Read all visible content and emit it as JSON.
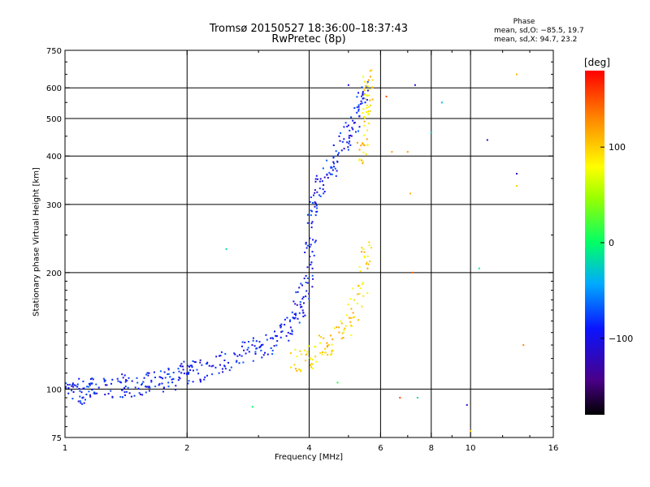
{
  "header": {
    "title_line1": "Tromsø 20150527 18:36:00–18:37:43",
    "title_line2": "RwPretec (8p)"
  },
  "phase_info": {
    "title": "Phase",
    "o_mode": "mean, sd,O: −85.5, 19.7",
    "x_mode": "mean, sd,X: 94.7, 23.2"
  },
  "colorbar": {
    "unit": "[deg]",
    "tick_labels": [
      "100",
      "0",
      "−100"
    ],
    "tick_values": [
      100,
      0,
      -100
    ],
    "range": [
      -180,
      180
    ]
  },
  "colors": {
    "grid": "#000000",
    "o_mode_trace": "#1c46f0",
    "x_mode_trace": "#e6e619"
  },
  "chart_data": {
    "type": "scatter",
    "title": "Tromsø 20150527 18:36:00–18:37:43",
    "subtitle": "RwPretec (8p)",
    "xlabel": "Frequency [MHz]",
    "ylabel": "Stationary phase Virtual Height [km]",
    "x_scale": "log",
    "y_scale": "log",
    "xlim": [
      1,
      16
    ],
    "ylim": [
      75,
      750
    ],
    "x_ticks": [
      1,
      2,
      4,
      6,
      8,
      10,
      16
    ],
    "x_tick_labels": [
      "1",
      "2",
      "4",
      "6",
      "8",
      "10",
      "16"
    ],
    "y_ticks": [
      75,
      100,
      200,
      300,
      400,
      500,
      600,
      750
    ],
    "y_tick_labels": [
      "75",
      "100",
      "200",
      "300",
      "400",
      "500",
      "600",
      "750"
    ],
    "x_grid": [
      2,
      4,
      6,
      8,
      10
    ],
    "y_grid": [
      100,
      200,
      300,
      400,
      500,
      600
    ],
    "color_scale": "phase [deg], -180 to 180, rainbow",
    "series": [
      {
        "points": [
          [
            1.0,
            97
          ],
          [
            1.05,
            100
          ],
          [
            1.1,
            98
          ],
          [
            1.15,
            100
          ],
          [
            1.2,
            101
          ],
          [
            1.3,
            102
          ],
          [
            1.4,
            102
          ],
          [
            1.5,
            103
          ],
          [
            1.6,
            103
          ],
          [
            1.7,
            104
          ],
          [
            1.8,
            106
          ],
          [
            1.9,
            108
          ],
          [
            2.0,
            110
          ],
          [
            2.1,
            112
          ],
          [
            2.3,
            115
          ],
          [
            2.5,
            118
          ],
          [
            2.7,
            122
          ],
          [
            2.9,
            126
          ],
          [
            3.1,
            130
          ],
          [
            3.3,
            135
          ],
          [
            3.5,
            142
          ],
          [
            3.7,
            150
          ],
          [
            3.8,
            165
          ],
          [
            3.9,
            180
          ],
          [
            4.0,
            200
          ],
          [
            4.05,
            240
          ],
          [
            4.1,
            290
          ],
          [
            4.2,
            330
          ],
          [
            4.4,
            350
          ],
          [
            4.6,
            380
          ],
          [
            4.8,
            420
          ],
          [
            5.0,
            460
          ],
          [
            5.2,
            500
          ],
          [
            5.4,
            560
          ],
          [
            5.5,
            600
          ]
        ],
        "phase": -90
      },
      {
        "points": [
          [
            3.6,
            118
          ],
          [
            3.8,
            120
          ],
          [
            4.0,
            122
          ],
          [
            4.2,
            125
          ],
          [
            4.4,
            130
          ],
          [
            4.6,
            135
          ],
          [
            4.8,
            140
          ],
          [
            5.0,
            150
          ],
          [
            5.2,
            165
          ],
          [
            5.4,
            185
          ],
          [
            5.5,
            210
          ],
          [
            5.6,
            240
          ]
        ],
        "phase": 95
      },
      {
        "points": [
          [
            5.3,
            390
          ],
          [
            5.4,
            420
          ],
          [
            5.5,
            460
          ],
          [
            5.55,
            500
          ],
          [
            5.6,
            550
          ],
          [
            5.6,
            600
          ],
          [
            5.55,
            640
          ]
        ],
        "phase": 95
      }
    ],
    "isolated_points": [
      [
        2.5,
        230,
        -20
      ],
      [
        2.9,
        90,
        0
      ],
      [
        4.7,
        104,
        10
      ],
      [
        5.0,
        610,
        -100
      ],
      [
        6.2,
        570,
        150
      ],
      [
        6.4,
        410,
        120
      ],
      [
        6.7,
        95,
        150
      ],
      [
        7.0,
        410,
        120
      ],
      [
        7.1,
        320,
        110
      ],
      [
        7.2,
        200,
        140
      ],
      [
        7.3,
        610,
        -100
      ],
      [
        7.4,
        95,
        -20
      ],
      [
        8.0,
        460,
        -30
      ],
      [
        8.5,
        550,
        -30
      ],
      [
        9.8,
        91,
        -110
      ],
      [
        10.0,
        78,
        100
      ],
      [
        10.5,
        205,
        -10
      ],
      [
        11.0,
        440,
        -120
      ],
      [
        13.0,
        650,
        110
      ],
      [
        13.0,
        360,
        -120
      ],
      [
        13.0,
        335,
        100
      ],
      [
        13.5,
        130,
        130
      ]
    ]
  }
}
